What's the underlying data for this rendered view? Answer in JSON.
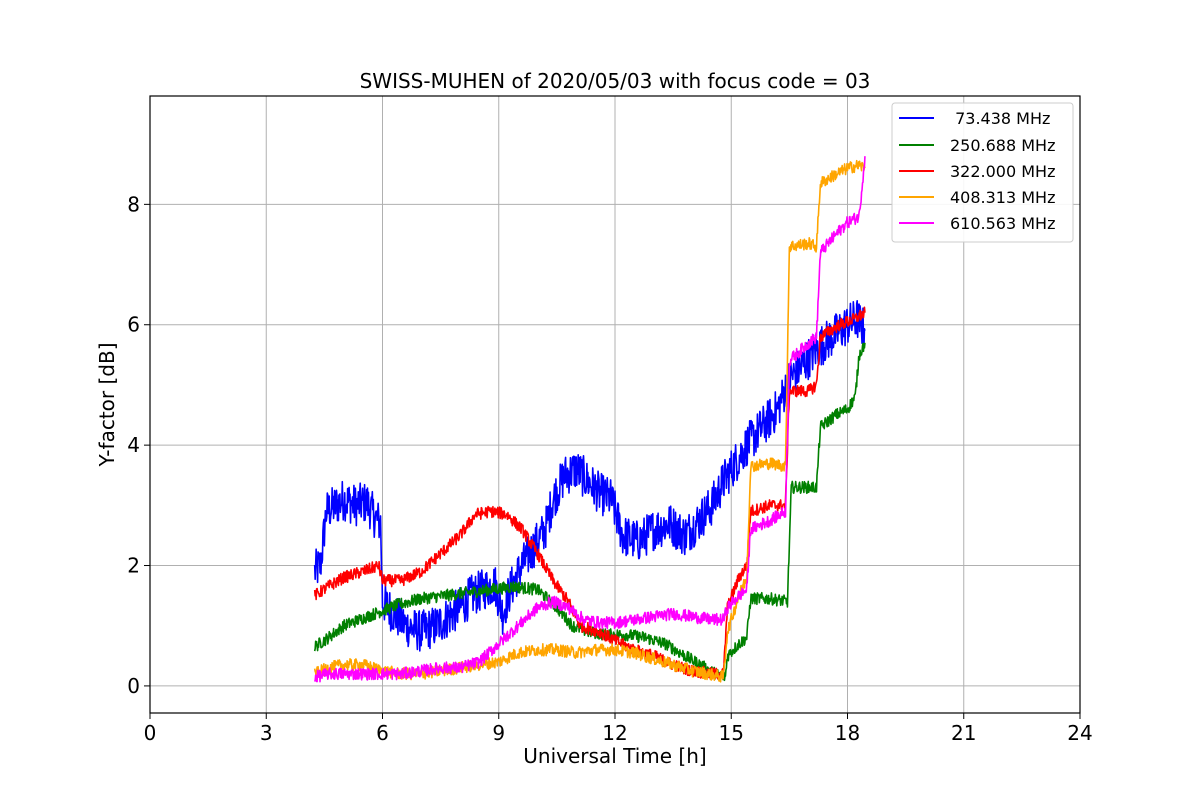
{
  "chart_data": {
    "type": "line",
    "title": "SWISS-MUHEN of 2020/05/03 with focus code = 03",
    "xlabel": "Universal Time [h]",
    "ylabel": "Y-factor [dB]",
    "xlim": [
      0,
      24
    ],
    "ylim": [
      -0.45,
      9.8
    ],
    "xticks": [
      0,
      3,
      6,
      9,
      12,
      15,
      18,
      21,
      24
    ],
    "yticks": [
      0,
      2,
      4,
      6,
      8
    ],
    "xtick_labels": [
      "0",
      "3",
      "6",
      "9",
      "12",
      "15",
      "18",
      "21",
      "24"
    ],
    "ytick_labels": [
      "0",
      "2",
      "4",
      "6",
      "8"
    ],
    "grid": true,
    "legend_position": "top-right",
    "series": [
      {
        "name": " 73.438 MHz",
        "color": "#0000ff",
        "noise": 0.35,
        "points": [
          [
            4.25,
            1.9
          ],
          [
            4.4,
            2.0
          ],
          [
            4.55,
            2.9
          ],
          [
            4.8,
            3.0
          ],
          [
            5.0,
            3.1
          ],
          [
            5.3,
            3.0
          ],
          [
            5.6,
            3.05
          ],
          [
            5.8,
            2.8
          ],
          [
            5.95,
            2.7
          ],
          [
            6.0,
            1.4
          ],
          [
            6.3,
            1.2
          ],
          [
            6.6,
            1.0
          ],
          [
            7.0,
            0.9
          ],
          [
            7.4,
            1.0
          ],
          [
            7.7,
            1.15
          ],
          [
            8.0,
            1.3
          ],
          [
            8.3,
            1.5
          ],
          [
            8.6,
            1.6
          ],
          [
            8.9,
            1.7
          ],
          [
            9.1,
            1.2
          ],
          [
            9.3,
            1.6
          ],
          [
            9.6,
            2.0
          ],
          [
            9.9,
            2.3
          ],
          [
            10.2,
            2.6
          ],
          [
            10.4,
            3.1
          ],
          [
            10.7,
            3.5
          ],
          [
            11.0,
            3.6
          ],
          [
            11.3,
            3.4
          ],
          [
            11.6,
            3.2
          ],
          [
            11.9,
            3.1
          ],
          [
            12.2,
            2.5
          ],
          [
            12.6,
            2.4
          ],
          [
            13.0,
            2.6
          ],
          [
            13.4,
            2.7
          ],
          [
            13.8,
            2.5
          ],
          [
            14.1,
            2.7
          ],
          [
            14.5,
            3.0
          ],
          [
            14.8,
            3.4
          ],
          [
            15.1,
            3.7
          ],
          [
            15.4,
            4.0
          ],
          [
            15.8,
            4.3
          ],
          [
            16.2,
            4.6
          ],
          [
            16.5,
            5.1
          ],
          [
            16.8,
            5.3
          ],
          [
            17.2,
            5.6
          ],
          [
            17.6,
            5.8
          ],
          [
            18.0,
            6.0
          ],
          [
            18.25,
            6.1
          ],
          [
            18.45,
            5.9
          ]
        ]
      },
      {
        "name": "250.688 MHz",
        "color": "#008000",
        "noise": 0.1,
        "points": [
          [
            4.25,
            0.65
          ],
          [
            4.6,
            0.8
          ],
          [
            5.0,
            1.0
          ],
          [
            5.4,
            1.1
          ],
          [
            5.8,
            1.2
          ],
          [
            6.0,
            1.25
          ],
          [
            6.4,
            1.35
          ],
          [
            7.0,
            1.45
          ],
          [
            7.6,
            1.5
          ],
          [
            8.2,
            1.55
          ],
          [
            8.8,
            1.6
          ],
          [
            9.4,
            1.65
          ],
          [
            10.0,
            1.6
          ],
          [
            10.5,
            1.3
          ],
          [
            10.9,
            1.0
          ],
          [
            11.3,
            0.9
          ],
          [
            11.8,
            0.85
          ],
          [
            12.3,
            0.85
          ],
          [
            12.8,
            0.8
          ],
          [
            13.3,
            0.7
          ],
          [
            13.8,
            0.5
          ],
          [
            14.2,
            0.35
          ],
          [
            14.6,
            0.2
          ],
          [
            14.85,
            0.15
          ],
          [
            14.9,
            0.5
          ],
          [
            15.2,
            0.7
          ],
          [
            15.4,
            0.8
          ],
          [
            15.5,
            1.45
          ],
          [
            16.0,
            1.45
          ],
          [
            16.45,
            1.4
          ],
          [
            16.55,
            3.3
          ],
          [
            17.0,
            3.3
          ],
          [
            17.2,
            3.3
          ],
          [
            17.3,
            4.3
          ],
          [
            17.7,
            4.5
          ],
          [
            18.0,
            4.6
          ],
          [
            18.2,
            4.8
          ],
          [
            18.3,
            5.5
          ],
          [
            18.45,
            5.7
          ]
        ]
      },
      {
        "name": "322.000 MHz",
        "color": "#ff0000",
        "noise": 0.1,
        "points": [
          [
            4.25,
            1.5
          ],
          [
            4.6,
            1.65
          ],
          [
            5.0,
            1.8
          ],
          [
            5.5,
            1.9
          ],
          [
            5.9,
            2.0
          ],
          [
            6.0,
            1.75
          ],
          [
            6.5,
            1.75
          ],
          [
            7.0,
            1.9
          ],
          [
            7.5,
            2.2
          ],
          [
            8.0,
            2.5
          ],
          [
            8.4,
            2.85
          ],
          [
            8.8,
            2.9
          ],
          [
            9.2,
            2.85
          ],
          [
            9.6,
            2.6
          ],
          [
            10.0,
            2.2
          ],
          [
            10.4,
            1.75
          ],
          [
            10.8,
            1.4
          ],
          [
            11.1,
            1.0
          ],
          [
            11.6,
            0.9
          ],
          [
            12.0,
            0.75
          ],
          [
            12.5,
            0.6
          ],
          [
            13.0,
            0.5
          ],
          [
            13.5,
            0.35
          ],
          [
            14.0,
            0.25
          ],
          [
            14.5,
            0.2
          ],
          [
            14.8,
            0.2
          ],
          [
            14.9,
            1.3
          ],
          [
            15.2,
            1.8
          ],
          [
            15.4,
            2.0
          ],
          [
            15.5,
            2.9
          ],
          [
            16.0,
            3.0
          ],
          [
            16.4,
            3.0
          ],
          [
            16.5,
            4.9
          ],
          [
            17.0,
            4.9
          ],
          [
            17.2,
            5.0
          ],
          [
            17.3,
            5.8
          ],
          [
            17.8,
            6.0
          ],
          [
            18.2,
            6.1
          ],
          [
            18.45,
            6.2
          ]
        ]
      },
      {
        "name": "408.313 MHz",
        "color": "#ffa500",
        "noise": 0.1,
        "points": [
          [
            4.25,
            0.2
          ],
          [
            4.6,
            0.3
          ],
          [
            5.0,
            0.35
          ],
          [
            5.5,
            0.35
          ],
          [
            6.0,
            0.25
          ],
          [
            6.5,
            0.2
          ],
          [
            7.0,
            0.2
          ],
          [
            7.5,
            0.25
          ],
          [
            8.0,
            0.3
          ],
          [
            8.5,
            0.35
          ],
          [
            9.0,
            0.4
          ],
          [
            9.5,
            0.55
          ],
          [
            10.0,
            0.6
          ],
          [
            10.5,
            0.6
          ],
          [
            11.0,
            0.55
          ],
          [
            11.5,
            0.6
          ],
          [
            12.0,
            0.6
          ],
          [
            12.5,
            0.55
          ],
          [
            13.0,
            0.45
          ],
          [
            13.5,
            0.35
          ],
          [
            14.0,
            0.25
          ],
          [
            14.4,
            0.2
          ],
          [
            14.8,
            0.15
          ],
          [
            14.9,
            0.9
          ],
          [
            15.2,
            1.5
          ],
          [
            15.4,
            1.8
          ],
          [
            15.5,
            3.65
          ],
          [
            16.0,
            3.7
          ],
          [
            16.4,
            3.65
          ],
          [
            16.5,
            7.3
          ],
          [
            17.0,
            7.35
          ],
          [
            17.2,
            7.3
          ],
          [
            17.3,
            8.35
          ],
          [
            17.7,
            8.5
          ],
          [
            18.0,
            8.6
          ],
          [
            18.3,
            8.65
          ],
          [
            18.45,
            8.6
          ]
        ]
      },
      {
        "name": "610.563 MHz",
        "color": "#ff00ff",
        "noise": 0.1,
        "points": [
          [
            4.25,
            0.15
          ],
          [
            4.6,
            0.2
          ],
          [
            5.0,
            0.2
          ],
          [
            5.5,
            0.2
          ],
          [
            6.0,
            0.2
          ],
          [
            6.5,
            0.2
          ],
          [
            7.0,
            0.25
          ],
          [
            7.5,
            0.3
          ],
          [
            8.0,
            0.3
          ],
          [
            8.5,
            0.4
          ],
          [
            9.0,
            0.7
          ],
          [
            9.5,
            1.0
          ],
          [
            10.0,
            1.3
          ],
          [
            10.4,
            1.4
          ],
          [
            10.8,
            1.3
          ],
          [
            11.2,
            1.1
          ],
          [
            11.6,
            1.05
          ],
          [
            12.0,
            1.05
          ],
          [
            12.5,
            1.1
          ],
          [
            13.0,
            1.15
          ],
          [
            13.5,
            1.2
          ],
          [
            14.0,
            1.15
          ],
          [
            14.5,
            1.1
          ],
          [
            14.8,
            1.1
          ],
          [
            14.9,
            1.3
          ],
          [
            15.2,
            1.5
          ],
          [
            15.4,
            1.6
          ],
          [
            15.5,
            2.6
          ],
          [
            16.0,
            2.75
          ],
          [
            16.4,
            2.9
          ],
          [
            16.5,
            5.4
          ],
          [
            17.0,
            5.7
          ],
          [
            17.2,
            5.8
          ],
          [
            17.3,
            7.2
          ],
          [
            17.7,
            7.5
          ],
          [
            18.0,
            7.7
          ],
          [
            18.3,
            7.8
          ],
          [
            18.45,
            8.8
          ]
        ]
      }
    ]
  }
}
